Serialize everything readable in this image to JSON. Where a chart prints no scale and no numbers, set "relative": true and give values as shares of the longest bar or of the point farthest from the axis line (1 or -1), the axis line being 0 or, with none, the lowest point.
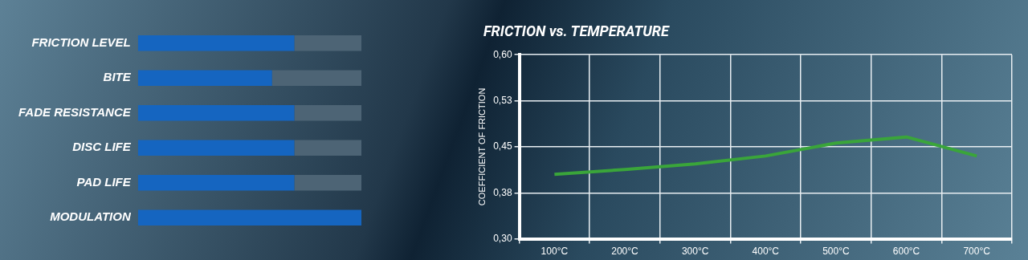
{
  "chart_data": [
    {
      "type": "bar",
      "orientation": "horizontal",
      "stacked": true,
      "relative": true,
      "grid": false,
      "categories": [
        "FRICTION LEVEL",
        "BITE",
        "FADE RESISTANCE",
        "DISC LIFE",
        "PAD LIFE",
        "MODULATION"
      ],
      "series": [
        {
          "color": "#1565c0",
          "values": [
            0.7,
            0.6,
            0.7,
            0.7,
            0.7,
            1
          ]
        },
        {
          "color": "#4d6475",
          "values": [
            0.3,
            0.4,
            0.3,
            0.3,
            0.3,
            0
          ]
        }
      ]
    },
    {
      "type": "line",
      "title": "FRICTION vs. TEMPERATURE",
      "ylabel": "COEFFICIENT OF FRICTION",
      "grid": true,
      "categories": [
        "100°C",
        "200°C",
        "300°C",
        "400°C",
        "500°C",
        "600°C",
        "700°C"
      ],
      "ylim": [
        0.3,
        0.6
      ],
      "yticks": [
        {
          "value": 0.3,
          "label": "0,30"
        },
        {
          "value": 0.375,
          "label": "0,38"
        },
        {
          "value": 0.45,
          "label": "0,45"
        },
        {
          "value": 0.525,
          "label": "0,53"
        },
        {
          "value": 0.6,
          "label": "0,60"
        }
      ],
      "series": [
        {
          "color": "#3aa53a",
          "values": [
            0.405,
            0.413,
            0.422,
            0.435,
            0.456,
            0.466,
            0.435
          ]
        }
      ]
    }
  ]
}
